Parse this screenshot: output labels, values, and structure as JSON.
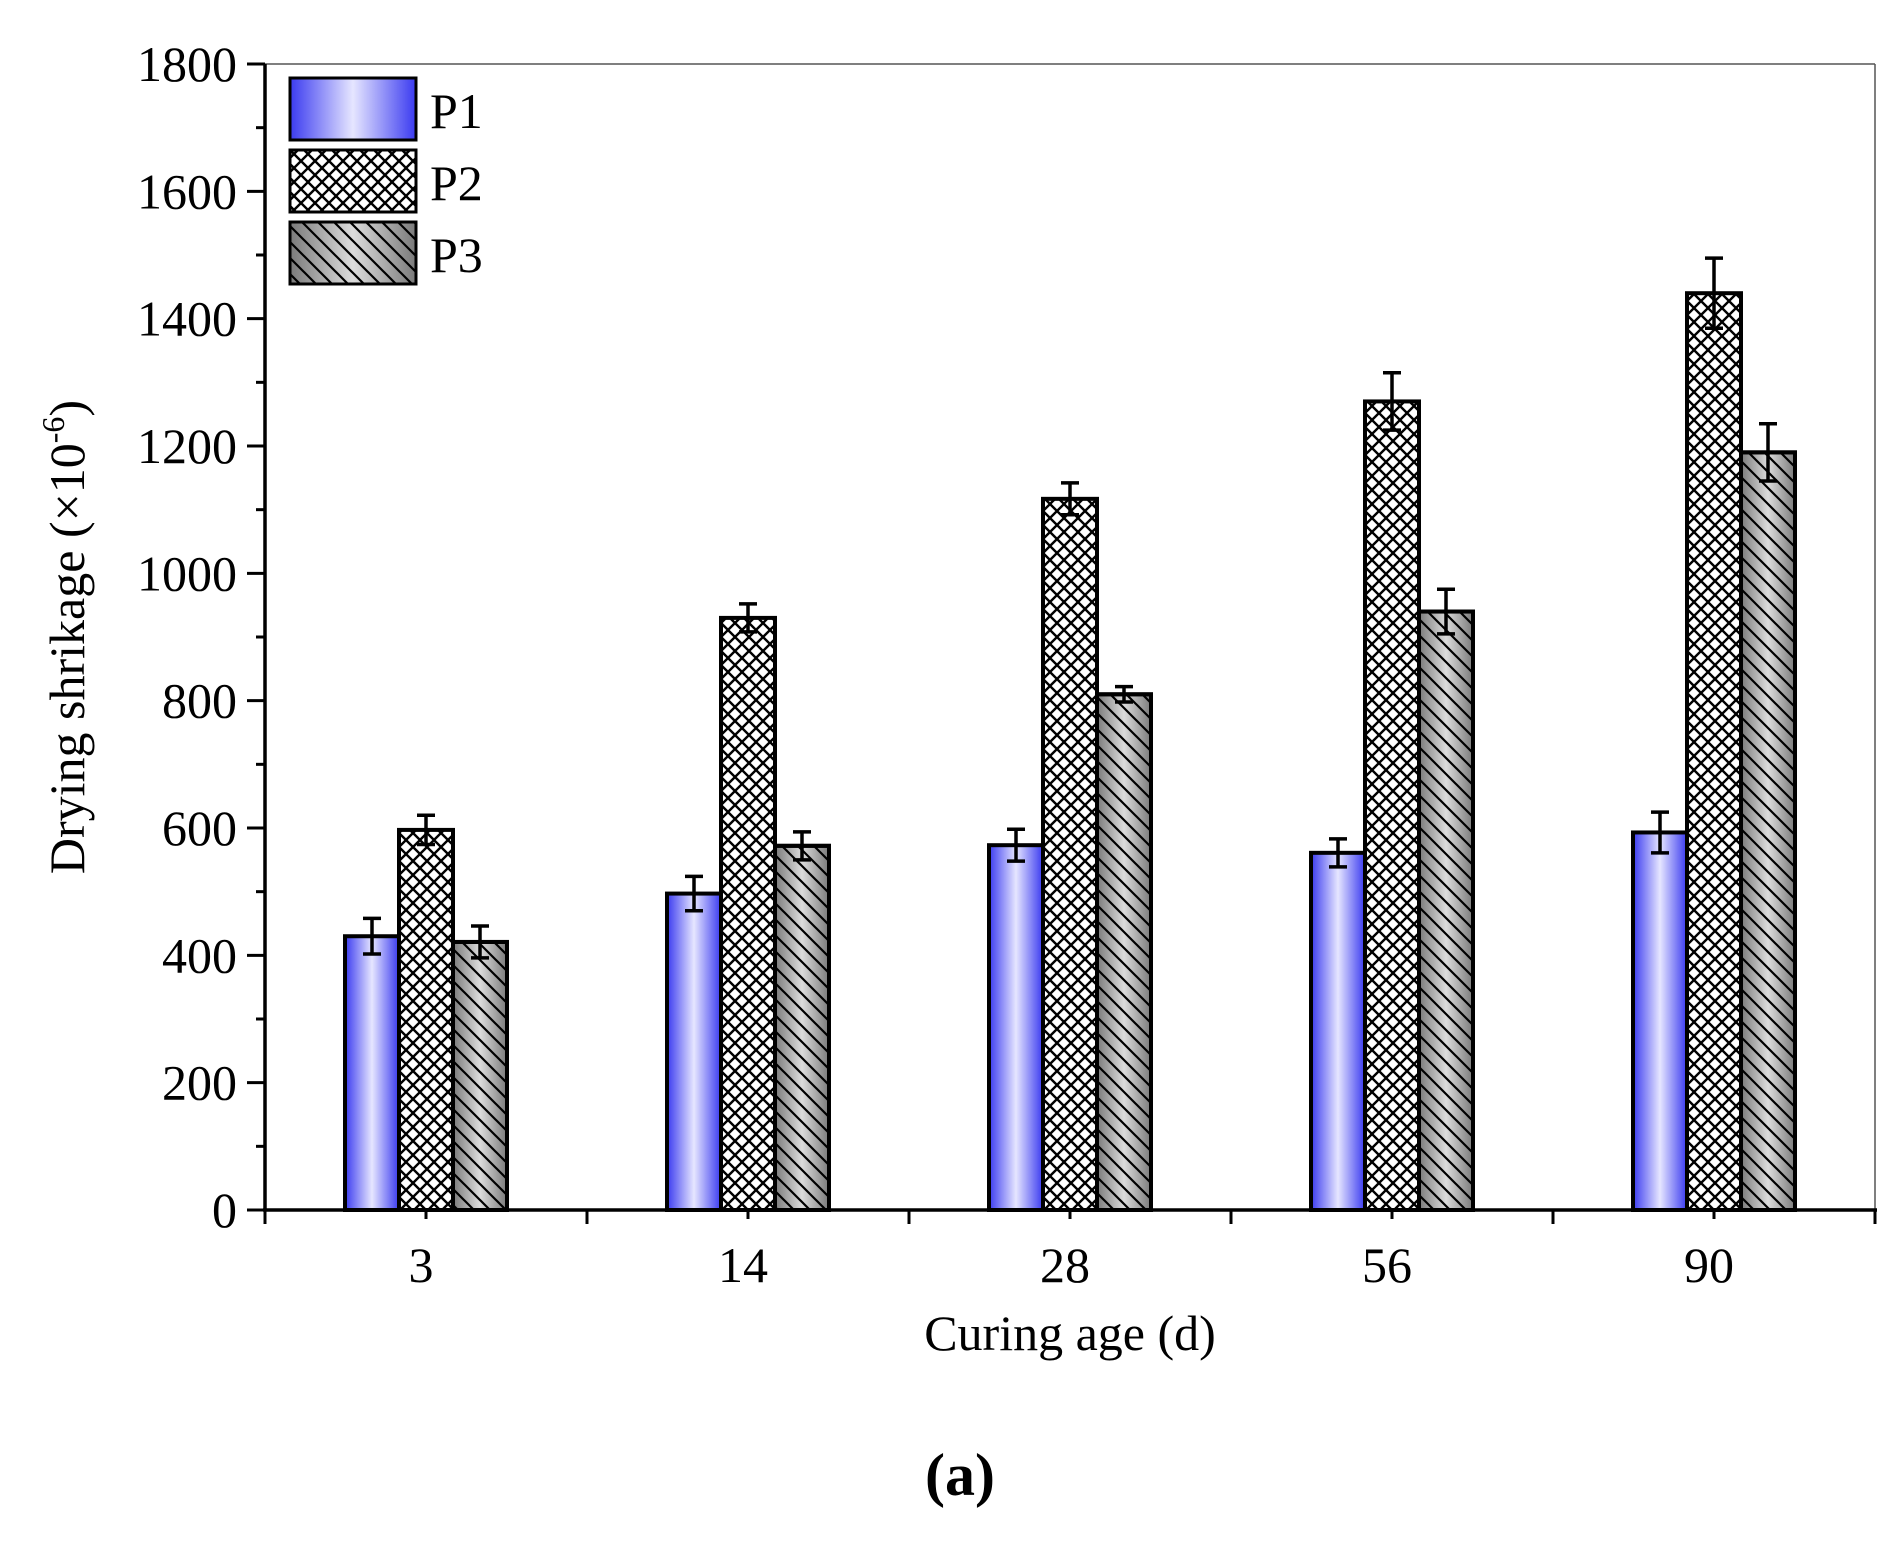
{
  "figure": {
    "panel_label": "(a)"
  },
  "colors": {
    "p1_dark": "#3a3af0",
    "p1_light": "#e6e6ff",
    "p2_fill": "#ffffff",
    "p3_dark": "#7a7a7a",
    "p3_light": "#dcdcdc",
    "stroke": "#000000"
  },
  "chart_data": {
    "type": "bar",
    "title": "",
    "xlabel": "Curing age (d)",
    "ylabel": "Drying shrikage (×10",
    "ylabel_sup": "-6",
    "ylabel_close": ")",
    "ylim": [
      0,
      1800
    ],
    "yticks": [
      0,
      200,
      400,
      600,
      800,
      1000,
      1200,
      1400,
      1600,
      1800
    ],
    "categories": [
      "3",
      "14",
      "28",
      "56",
      "90"
    ],
    "legend_position": "top-left",
    "series": [
      {
        "name": "P1",
        "pattern": "gradient-blue",
        "values": [
          430,
          497,
          573,
          561,
          593
        ],
        "errors": [
          28,
          27,
          25,
          22,
          32
        ]
      },
      {
        "name": "P2",
        "pattern": "crosshatch",
        "values": [
          597,
          930,
          1117,
          1270,
          1440
        ],
        "errors": [
          23,
          22,
          25,
          45,
          55
        ]
      },
      {
        "name": "P3",
        "pattern": "diagonal-hatch",
        "values": [
          421,
          572,
          810,
          940,
          1190
        ],
        "errors": [
          25,
          22,
          12,
          35,
          45
        ]
      }
    ]
  }
}
